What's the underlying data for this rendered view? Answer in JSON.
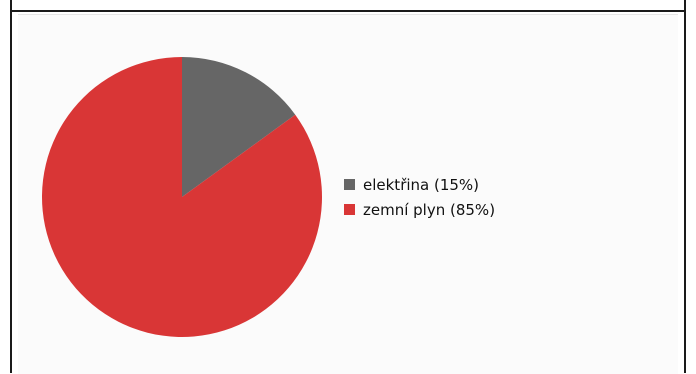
{
  "chart_data": {
    "type": "pie",
    "slices": [
      {
        "label": "elektřina",
        "value": 15,
        "legend": "elektřina (15%)",
        "color": "#666666"
      },
      {
        "label": "zemní plyn",
        "value": 85,
        "legend": "zemní plyn (85%)",
        "color": "#d93636"
      }
    ],
    "start_angle": "12 o'clock, clockwise",
    "legend_position": "right"
  }
}
